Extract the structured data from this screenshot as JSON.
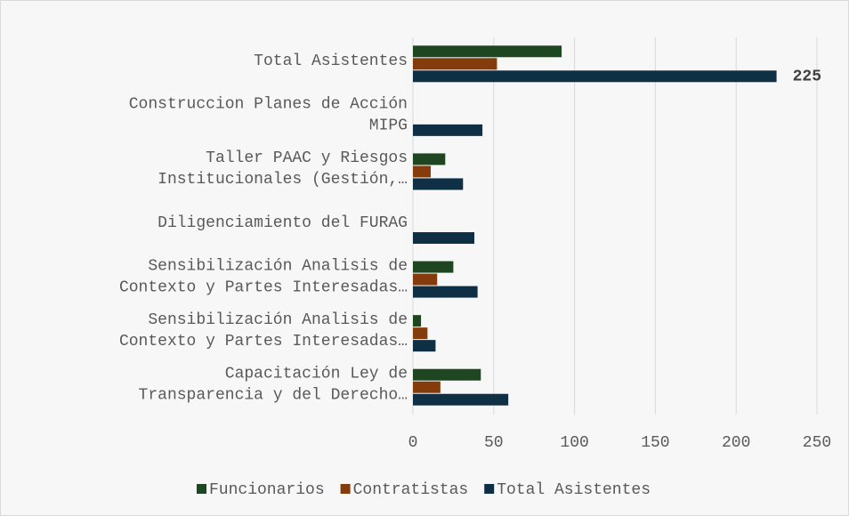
{
  "chart_data": {
    "type": "barh",
    "categories": [
      [
        "Total Asistentes"
      ],
      [
        "Construccion Planes de Acción",
        "MIPG"
      ],
      [
        "Taller PAAC y Riesgos",
        "Institucionales (Gestión,…"
      ],
      [
        "Diligenciamiento del FURAG"
      ],
      [
        "Sensibilización Analisis de",
        "Contexto y Partes Interesadas…"
      ],
      [
        "Sensibilización Analisis de",
        "Contexto y Partes Interesadas…"
      ],
      [
        "Capacitación Ley de",
        "Transparencia y del Derecho…"
      ]
    ],
    "series": [
      {
        "name": "Funcionarios",
        "color": "#1e4620",
        "values": [
          92,
          0,
          20,
          0,
          25,
          5,
          42
        ]
      },
      {
        "name": "Contratistas",
        "color": "#843c0c",
        "values": [
          52,
          0,
          11,
          0,
          15,
          9,
          17
        ]
      },
      {
        "name": "Total Asistentes",
        "color": "#0f2f44",
        "values": [
          225,
          43,
          31,
          38,
          40,
          14,
          59
        ],
        "value_labels": [
          "225",
          null,
          null,
          null,
          null,
          null,
          null
        ]
      }
    ],
    "xlim": [
      0,
      250
    ],
    "xticks": [
      0,
      50,
      100,
      150,
      200,
      250
    ],
    "grid": true,
    "legend": "bottom"
  }
}
